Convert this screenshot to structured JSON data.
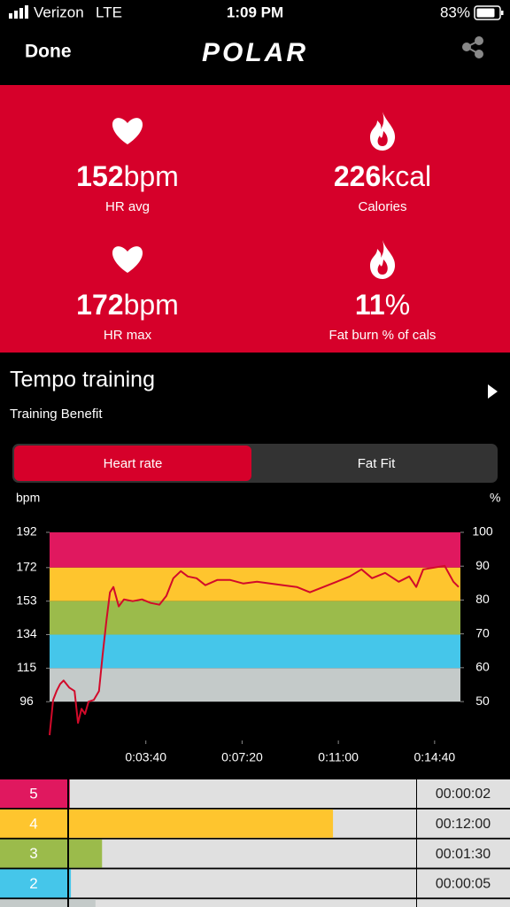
{
  "status": {
    "carrier": "Verizon",
    "network": "LTE",
    "time": "1:09 PM",
    "battery": "83%"
  },
  "header": {
    "done": "Done",
    "logo": "POLAR"
  },
  "stats": [
    {
      "value": "152",
      "unit": "bpm",
      "label": "HR avg"
    },
    {
      "value": "226",
      "unit": "kcal",
      "label": "Calories"
    },
    {
      "value": "172",
      "unit": "bpm",
      "label": "HR max"
    },
    {
      "value": "11",
      "unit": "%",
      "label": "Fat burn % of cals"
    }
  ],
  "training": {
    "title": "Tempo training",
    "subtitle": "Training Benefit"
  },
  "tabs": [
    "Heart rate",
    "Fat Fit"
  ],
  "chart_data": {
    "type": "line",
    "y_label": "bpm",
    "y2_label": "%",
    "x": [
      0,
      8,
      16,
      24,
      32,
      45,
      57,
      65,
      73,
      81,
      89,
      101,
      113,
      121,
      130,
      138,
      146,
      158,
      170,
      190,
      211,
      231,
      251,
      267,
      283,
      300,
      316,
      336,
      356,
      383,
      413,
      443,
      474,
      504,
      534,
      565,
      595,
      626,
      656,
      686,
      713,
      737,
      767,
      798,
      822,
      838,
      854,
      879,
      903,
      923,
      935
    ],
    "series": [
      {
        "name": "Heart rate",
        "color": "#d20a2a",
        "values": [
          77,
          97,
          102,
          106,
          108,
          104,
          102,
          84,
          92,
          89,
          96,
          97,
          102,
          122,
          142,
          158,
          161,
          150,
          154,
          153,
          154,
          152,
          151,
          156,
          166,
          170,
          167,
          166,
          162,
          165,
          165,
          163,
          164,
          163,
          162,
          161,
          158,
          161,
          164,
          167,
          171,
          166,
          169,
          164,
          167,
          161,
          171,
          172,
          173,
          164,
          161
        ]
      }
    ],
    "bands": [
      {
        "from": 172,
        "to": 192,
        "color": "#e0185f"
      },
      {
        "from": 153,
        "to": 172,
        "color": "#fec52e"
      },
      {
        "from": 134,
        "to": 153,
        "color": "#9bbb4b"
      },
      {
        "from": 115,
        "to": 134,
        "color": "#45c6ea"
      },
      {
        "from": 96,
        "to": 115,
        "color": "#c4cac9"
      }
    ],
    "xlim": [
      0,
      939
    ],
    "ylim": [
      74,
      192
    ],
    "y2lim": [
      38.5,
      100
    ],
    "xticks": [
      {
        "value": 220,
        "label": "0:03:40"
      },
      {
        "value": 440,
        "label": "0:07:20"
      },
      {
        "value": 660,
        "label": "0:11:00"
      },
      {
        "value": 880,
        "label": "0:14:40"
      }
    ],
    "yticks": [
      96,
      115,
      134,
      153,
      172,
      192
    ],
    "y2ticks": [
      50,
      60,
      70,
      80,
      90,
      100
    ]
  },
  "zones": [
    {
      "label": "5",
      "time": "00:00:02",
      "seconds": 2,
      "color": "#e0185f"
    },
    {
      "label": "4",
      "time": "00:12:00",
      "seconds": 720,
      "color": "#fec52e"
    },
    {
      "label": "3",
      "time": "00:01:30",
      "seconds": 90,
      "color": "#9bbb4b"
    },
    {
      "label": "2",
      "time": "00:00:05",
      "seconds": 5,
      "color": "#45c6ea"
    },
    {
      "seconds": 72,
      "color": "#c4cac9"
    }
  ]
}
